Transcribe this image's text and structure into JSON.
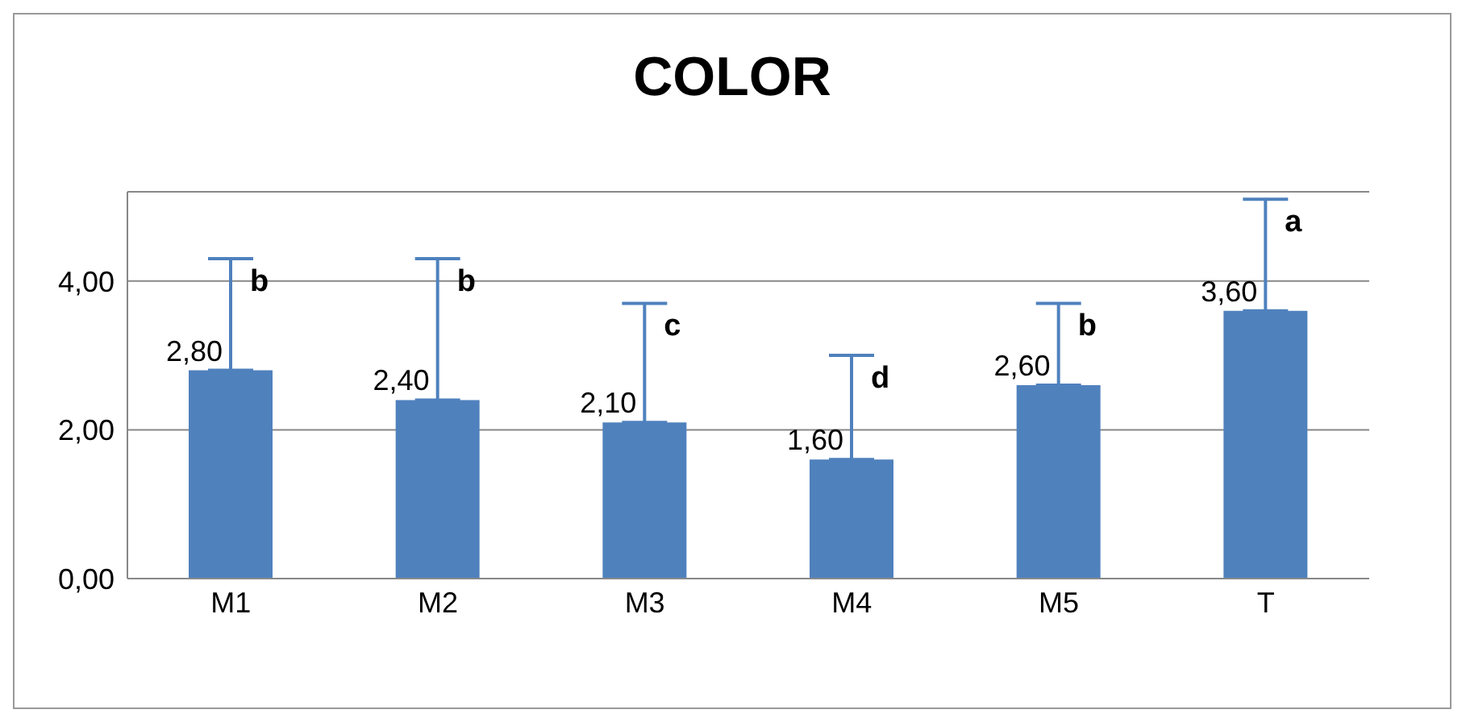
{
  "chart_data": {
    "type": "bar",
    "title": "COLOR",
    "categories": [
      "M1",
      "M2",
      "M3",
      "M4",
      "M5",
      "T"
    ],
    "values": [
      2.8,
      2.4,
      2.1,
      1.6,
      2.6,
      3.6
    ],
    "value_labels": [
      "2,80",
      "2,40",
      "2,10",
      "1,60",
      "2,60",
      "3,60"
    ],
    "errors": [
      [
        2.8,
        4.3
      ],
      [
        2.4,
        4.3
      ],
      [
        2.1,
        3.7
      ],
      [
        1.6,
        3.0
      ],
      [
        2.6,
        3.7
      ],
      [
        3.6,
        5.1
      ]
    ],
    "color": "#4f81bd",
    "ylim": [
      0,
      5.2
    ],
    "yticks": [
      {
        "value": 0,
        "label": "0,00"
      },
      {
        "value": 2,
        "label": "2,00"
      },
      {
        "value": 4,
        "label": "4,00"
      }
    ],
    "grid": "y",
    "annotations": [
      "b",
      "b",
      "c",
      "d",
      "b",
      "a"
    ]
  }
}
